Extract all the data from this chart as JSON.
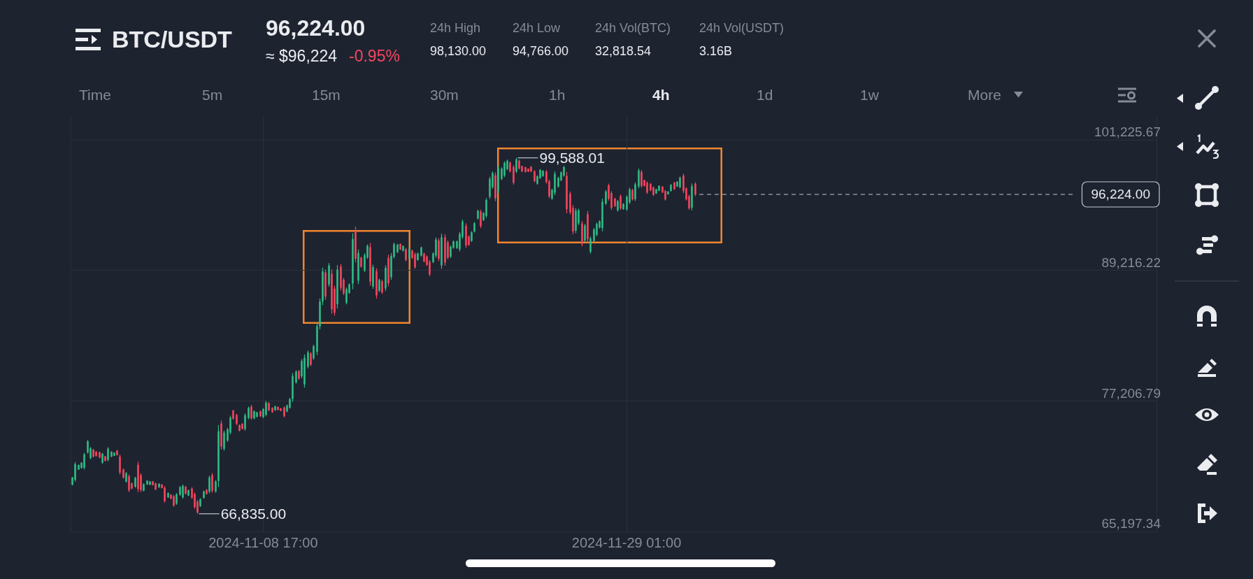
{
  "chart_data": {
    "type": "candlestick",
    "title": "BTC/USDT",
    "subtitle": "96,224.00",
    "annotations": [
      "≈ $96,224",
      "-0.95%",
      "24h High",
      "98,130.00",
      "24h Low",
      "94,766.00",
      "24h Vol(BTC)",
      "32,818.54",
      "24h Vol(USDT)",
      "3.16B",
      "Time",
      "5m",
      "15m",
      "30m",
      "1h",
      "4h",
      "1d",
      "1w",
      "More",
      {
        "text": "99,588.01",
        "x": "2024-11-22T21:00",
        "y": 99588.01
      },
      {
        "text": "66,835.00",
        "x": "2024-11-05T01:00",
        "y": 66835
      }
    ],
    "x": [
      "2024-10-29T01:00",
      "2024-10-29T05:00",
      "2024-10-29T09:00",
      "2024-10-29T13:00",
      "2024-10-29T17:00",
      "2024-10-29T21:00",
      "2024-10-30T01:00",
      "2024-10-30T05:00",
      "2024-10-30T09:00",
      "2024-10-30T13:00",
      "2024-10-30T17:00",
      "2024-10-30T21:00",
      "2024-10-31T01:00",
      "2024-10-31T05:00",
      "2024-10-31T09:00",
      "2024-10-31T13:00",
      "2024-10-31T17:00",
      "2024-10-31T21:00",
      "2024-11-01T01:00",
      "2024-11-01T05:00",
      "2024-11-01T09:00",
      "2024-11-01T13:00",
      "2024-11-01T17:00",
      "2024-11-01T21:00",
      "2024-11-02T01:00",
      "2024-11-02T05:00",
      "2024-11-02T09:00",
      "2024-11-02T13:00",
      "2024-11-02T17:00",
      "2024-11-02T21:00",
      "2024-11-03T01:00",
      "2024-11-03T05:00",
      "2024-11-03T09:00",
      "2024-11-03T13:00",
      "2024-11-03T17:00",
      "2024-11-03T21:00",
      "2024-11-04T01:00",
      "2024-11-04T05:00",
      "2024-11-04T09:00",
      "2024-11-04T13:00",
      "2024-11-04T17:00",
      "2024-11-04T21:00",
      "2024-11-05T01:00",
      "2024-11-05T05:00",
      "2024-11-05T09:00",
      "2024-11-05T13:00",
      "2024-11-05T17:00",
      "2024-11-05T21:00",
      "2024-11-06T01:00",
      "2024-11-06T05:00",
      "2024-11-06T09:00",
      "2024-11-06T13:00",
      "2024-11-06T17:00",
      "2024-11-06T21:00",
      "2024-11-07T01:00",
      "2024-11-07T05:00",
      "2024-11-07T09:00",
      "2024-11-07T13:00",
      "2024-11-07T17:00",
      "2024-11-07T21:00",
      "2024-11-08T01:00",
      "2024-11-08T05:00",
      "2024-11-08T09:00",
      "2024-11-08T13:00",
      "2024-11-08T17:00",
      "2024-11-08T21:00",
      "2024-11-09T01:00",
      "2024-11-09T05:00",
      "2024-11-09T09:00",
      "2024-11-09T13:00",
      "2024-11-09T17:00",
      "2024-11-09T21:00",
      "2024-11-10T01:00",
      "2024-11-10T05:00",
      "2024-11-10T09:00",
      "2024-11-10T13:00",
      "2024-11-10T17:00",
      "2024-11-10T21:00",
      "2024-11-11T01:00",
      "2024-11-11T05:00",
      "2024-11-11T09:00",
      "2024-11-11T13:00",
      "2024-11-11T17:00",
      "2024-11-11T21:00",
      "2024-11-12T01:00",
      "2024-11-12T05:00",
      "2024-11-12T09:00",
      "2024-11-12T13:00",
      "2024-11-12T17:00",
      "2024-11-12T21:00",
      "2024-11-13T01:00",
      "2024-11-13T05:00",
      "2024-11-13T09:00",
      "2024-11-13T13:00",
      "2024-11-13T17:00",
      "2024-11-13T21:00",
      "2024-11-14T01:00",
      "2024-11-14T05:00",
      "2024-11-14T09:00",
      "2024-11-14T13:00",
      "2024-11-14T17:00",
      "2024-11-14T21:00",
      "2024-11-15T01:00",
      "2024-11-15T05:00",
      "2024-11-15T09:00",
      "2024-11-15T13:00",
      "2024-11-15T17:00",
      "2024-11-15T21:00",
      "2024-11-16T01:00",
      "2024-11-16T05:00",
      "2024-11-16T09:00",
      "2024-11-16T13:00",
      "2024-11-16T17:00",
      "2024-11-16T21:00",
      "2024-11-17T01:00",
      "2024-11-17T05:00",
      "2024-11-17T09:00",
      "2024-11-17T13:00",
      "2024-11-17T17:00",
      "2024-11-17T21:00",
      "2024-11-18T01:00",
      "2024-11-18T05:00",
      "2024-11-18T09:00",
      "2024-11-18T13:00",
      "2024-11-18T17:00",
      "2024-11-18T21:00",
      "2024-11-19T01:00",
      "2024-11-19T05:00",
      "2024-11-19T09:00",
      "2024-11-19T13:00",
      "2024-11-19T17:00",
      "2024-11-19T21:00",
      "2024-11-20T01:00",
      "2024-11-20T05:00",
      "2024-11-20T09:00",
      "2024-11-20T13:00",
      "2024-11-20T17:00",
      "2024-11-20T21:00",
      "2024-11-21T01:00",
      "2024-11-21T05:00",
      "2024-11-21T09:00",
      "2024-11-21T13:00",
      "2024-11-21T17:00",
      "2024-11-21T21:00",
      "2024-11-22T01:00",
      "2024-11-22T05:00",
      "2024-11-22T09:00",
      "2024-11-22T13:00",
      "2024-11-22T17:00",
      "2024-11-22T21:00",
      "2024-11-23T01:00",
      "2024-11-23T05:00",
      "2024-11-23T09:00",
      "2024-11-23T13:00",
      "2024-11-23T17:00",
      "2024-11-23T21:00",
      "2024-11-24T01:00",
      "2024-11-24T05:00",
      "2024-11-24T09:00",
      "2024-11-24T13:00",
      "2024-11-24T17:00",
      "2024-11-24T21:00",
      "2024-11-25T01:00",
      "2024-11-25T05:00",
      "2024-11-25T09:00",
      "2024-11-25T13:00",
      "2024-11-25T17:00",
      "2024-11-25T21:00",
      "2024-11-26T01:00",
      "2024-11-26T05:00",
      "2024-11-26T09:00",
      "2024-11-26T13:00",
      "2024-11-26T17:00",
      "2024-11-26T21:00",
      "2024-11-27T01:00",
      "2024-11-27T05:00",
      "2024-11-27T09:00",
      "2024-11-27T13:00",
      "2024-11-27T17:00",
      "2024-11-27T21:00",
      "2024-11-28T01:00",
      "2024-11-28T05:00",
      "2024-11-28T09:00",
      "2024-11-28T13:00",
      "2024-11-28T17:00",
      "2024-11-28T21:00",
      "2024-11-29T01:00",
      "2024-11-29T05:00",
      "2024-11-29T09:00",
      "2024-11-29T13:00",
      "2024-11-29T17:00",
      "2024-11-29T21:00",
      "2024-11-30T01:00",
      "2024-11-30T05:00",
      "2024-11-30T09:00",
      "2024-11-30T13:00",
      "2024-11-30T17:00",
      "2024-11-30T21:00",
      "2024-12-01T01:00",
      "2024-12-01T05:00",
      "2024-12-01T09:00",
      "2024-12-01T13:00",
      "2024-12-01T17:00",
      "2024-12-01T21:00",
      "2024-12-02T01:00",
      "2024-12-02T05:00",
      "2024-12-02T09:00",
      "2024-12-02T13:00",
      "2024-12-02T17:00",
      "2024-12-02T21:00"
    ],
    "ohlc": [
      [
        69520,
        70240,
        69440,
        70160
      ],
      [
        69970,
        71590,
        69790,
        71410
      ],
      [
        70910,
        71370,
        70860,
        71320
      ],
      [
        71050,
        71590,
        70990,
        71530
      ],
      [
        71070,
        72450,
        70920,
        72300
      ],
      [
        72490,
        73630,
        72360,
        73500
      ],
      [
        71960,
        72980,
        71850,
        72870
      ],
      [
        72730,
        72810,
        72020,
        72100
      ],
      [
        72550,
        72600,
        72100,
        72150
      ],
      [
        72490,
        72550,
        71950,
        72010
      ],
      [
        71540,
        72450,
        71440,
        72350
      ],
      [
        72120,
        72170,
        71650,
        71700
      ],
      [
        71800,
        72960,
        71670,
        72830
      ],
      [
        72100,
        72600,
        72040,
        72540
      ],
      [
        72180,
        72490,
        72150,
        72460
      ],
      [
        72650,
        72700,
        72190,
        72240
      ],
      [
        72100,
        72280,
        70450,
        70630
      ],
      [
        70900,
        70990,
        70070,
        70160
      ],
      [
        69800,
        70670,
        69700,
        70570
      ],
      [
        70290,
        70450,
        68840,
        69000
      ],
      [
        69640,
        69700,
        69100,
        69160
      ],
      [
        69330,
        70240,
        69230,
        70140
      ],
      [
        71350,
        71630,
        68840,
        69120
      ],
      [
        70390,
        70560,
        68840,
        69010
      ],
      [
        68970,
        69640,
        68890,
        69560
      ],
      [
        69530,
        69920,
        69490,
        69880
      ],
      [
        69510,
        69850,
        69470,
        69810
      ],
      [
        69810,
        69850,
        69440,
        69480
      ],
      [
        69630,
        69700,
        69010,
        69080
      ],
      [
        69270,
        69640,
        69230,
        69600
      ],
      [
        69530,
        69570,
        69170,
        69210
      ],
      [
        69230,
        69380,
        67860,
        68010
      ],
      [
        68340,
        68800,
        68290,
        68750
      ],
      [
        68580,
        68630,
        68180,
        68230
      ],
      [
        68450,
        68560,
        67490,
        67600
      ],
      [
        67770,
        68740,
        67660,
        68630
      ],
      [
        68590,
        69380,
        68500,
        69290
      ],
      [
        68350,
        69530,
        68220,
        69400
      ],
      [
        69320,
        69400,
        68610,
        68690
      ],
      [
        68520,
        69060,
        68460,
        69000
      ],
      [
        69160,
        69270,
        68200,
        68310
      ],
      [
        68650,
        68800,
        67300,
        67450
      ],
      [
        67960,
        68090,
        66835,
        66960
      ],
      [
        67550,
        68260,
        67470,
        68180
      ],
      [
        68300,
        68970,
        68220,
        68890
      ],
      [
        69050,
        69100,
        68610,
        68660
      ],
      [
        68880,
        70340,
        68720,
        70180
      ],
      [
        70400,
        70580,
        68780,
        68960
      ],
      [
        68890,
        69920,
        68780,
        69810
      ],
      [
        69860,
        75000,
        69290,
        74430
      ],
      [
        75140,
        75410,
        72750,
        73020
      ],
      [
        72820,
        74480,
        72640,
        74300
      ],
      [
        73580,
        74740,
        73450,
        74610
      ],
      [
        74310,
        75860,
        74140,
        75690
      ],
      [
        76320,
        76410,
        75490,
        75580
      ],
      [
        75930,
        76030,
        75000,
        75100
      ],
      [
        75000,
        75060,
        74420,
        74480
      ],
      [
        75110,
        75170,
        74590,
        74650
      ],
      [
        74640,
        76070,
        74480,
        75910
      ],
      [
        75650,
        76710,
        75530,
        76590
      ],
      [
        76700,
        76840,
        75490,
        75630
      ],
      [
        75610,
        76350,
        75530,
        76270
      ],
      [
        75760,
        76220,
        75710,
        76170
      ],
      [
        76270,
        76330,
        75750,
        75810
      ],
      [
        75730,
        76560,
        75640,
        76470
      ],
      [
        75950,
        77210,
        75810,
        77070
      ],
      [
        77020,
        77100,
        76280,
        76360
      ],
      [
        76580,
        76630,
        76130,
        76180
      ],
      [
        76360,
        76780,
        76310,
        76730
      ],
      [
        76670,
        76710,
        76350,
        76390
      ],
      [
        76530,
        76560,
        76280,
        76310
      ],
      [
        76610,
        76710,
        75710,
        75810
      ],
      [
        76250,
        76880,
        76180,
        76810
      ],
      [
        76600,
        77490,
        76500,
        77390
      ],
      [
        77400,
        79780,
        77140,
        79520
      ],
      [
        78930,
        80040,
        78810,
        79920
      ],
      [
        79970,
        80060,
        79180,
        79270
      ],
      [
        79490,
        81070,
        79310,
        80890
      ],
      [
        78750,
        81490,
        78450,
        81190
      ],
      [
        80380,
        81860,
        80210,
        81690
      ],
      [
        81580,
        81710,
        80420,
        80550
      ],
      [
        81140,
        82390,
        81000,
        82250
      ],
      [
        81740,
        84390,
        81450,
        84100
      ],
      [
        84090,
        86640,
        83810,
        86360
      ],
      [
        86390,
        89490,
        86040,
        89140
      ],
      [
        89040,
        89320,
        86540,
        86820
      ],
      [
        87940,
        89900,
        87720,
        89680
      ],
      [
        88910,
        89320,
        85250,
        85660
      ],
      [
        87550,
        87820,
        85080,
        85350
      ],
      [
        86120,
        89710,
        85720,
        89310
      ],
      [
        89580,
        89820,
        87390,
        87630
      ],
      [
        88370,
        88530,
        86960,
        87120
      ],
      [
        86260,
        87650,
        86110,
        87500
      ],
      [
        87170,
        88040,
        87070,
        87940
      ],
      [
        88020,
        92650,
        87500,
        92130
      ],
      [
        92920,
        93250,
        89970,
        90300
      ],
      [
        88290,
        91150,
        87970,
        90830
      ],
      [
        90400,
        90500,
        89470,
        89570
      ],
      [
        89250,
        90820,
        89070,
        90640
      ],
      [
        90420,
        91620,
        90290,
        91490
      ],
      [
        91360,
        91750,
        87820,
        88210
      ],
      [
        87760,
        89750,
        87540,
        89530
      ],
      [
        89150,
        89430,
        86640,
        86920
      ],
      [
        87360,
        88470,
        87240,
        88350
      ],
      [
        88230,
        88360,
        87070,
        87200
      ],
      [
        87570,
        89710,
        87330,
        89470
      ],
      [
        90380,
        90670,
        87760,
        88050
      ],
      [
        88610,
        90820,
        88360,
        90570
      ],
      [
        90480,
        91790,
        90330,
        91640
      ],
      [
        90910,
        91680,
        90820,
        91590
      ],
      [
        91660,
        91720,
        91100,
        91160
      ],
      [
        91030,
        91530,
        90970,
        91470
      ],
      [
        91180,
        91300,
        90070,
        90190
      ],
      [
        90300,
        91360,
        90180,
        91240
      ],
      [
        91060,
        91150,
        90290,
        90380
      ],
      [
        90720,
        90870,
        89370,
        89520
      ],
      [
        90200,
        90870,
        90120,
        90790
      ],
      [
        90590,
        91420,
        90500,
        91330
      ],
      [
        90780,
        90870,
        89970,
        90060
      ],
      [
        90510,
        90610,
        89640,
        89740
      ],
      [
        90030,
        90180,
        88700,
        88850
      ],
      [
        90000,
        90890,
        89900,
        90790
      ],
      [
        90590,
        92260,
        90400,
        92070
      ],
      [
        91980,
        92190,
        90090,
        90300
      ],
      [
        89700,
        92600,
        89380,
        92280
      ],
      [
        92270,
        92560,
        89660,
        89950
      ],
      [
        91810,
        91980,
        90240,
        90410
      ],
      [
        90490,
        91530,
        90370,
        91410
      ],
      [
        91310,
        91980,
        91230,
        91900
      ],
      [
        91290,
        91980,
        91210,
        91900
      ],
      [
        91170,
        92770,
        90990,
        92590
      ],
      [
        92310,
        93910,
        92130,
        93730
      ],
      [
        93330,
        93560,
        91310,
        91540
      ],
      [
        92350,
        92450,
        91480,
        91580
      ],
      [
        91950,
        92830,
        91850,
        92730
      ],
      [
        92810,
        93670,
        92710,
        93570
      ],
      [
        94000,
        94810,
        93910,
        94720
      ],
      [
        94640,
        94810,
        93130,
        93300
      ],
      [
        93860,
        94590,
        93780,
        94510
      ],
      [
        94240,
        95880,
        94060,
        95700
      ],
      [
        96010,
        97850,
        95810,
        97650
      ],
      [
        96900,
        98340,
        96740,
        98180
      ],
      [
        97980,
        98240,
        95600,
        95860
      ],
      [
        96570,
        98880,
        96310,
        98620
      ],
      [
        97650,
        98710,
        97530,
        98590
      ],
      [
        97960,
        99270,
        97810,
        99120
      ],
      [
        98550,
        99420,
        98450,
        99320
      ],
      [
        99150,
        99250,
        98240,
        98340
      ],
      [
        98740,
        98920,
        97120,
        97300
      ],
      [
        98330,
        99588.01,
        98190,
        99450
      ],
      [
        99330,
        99420,
        98520,
        98610
      ],
      [
        98820,
        98880,
        98280,
        98340
      ],
      [
        98720,
        98770,
        98240,
        98290
      ],
      [
        98590,
        98620,
        98280,
        98310
      ],
      [
        98770,
        98820,
        98280,
        98330
      ],
      [
        98340,
        98450,
        97340,
        97450
      ],
      [
        97210,
        97980,
        97120,
        97890
      ],
      [
        97730,
        98560,
        97640,
        98470
      ],
      [
        97910,
        98450,
        97850,
        98390
      ],
      [
        98330,
        98450,
        97230,
        97350
      ],
      [
        97420,
        97590,
        95880,
        96050
      ],
      [
        95830,
        96740,
        95730,
        96640
      ],
      [
        96380,
        98340,
        96160,
        98120
      ],
      [
        96940,
        97850,
        96840,
        97750
      ],
      [
        97530,
        98340,
        97440,
        98250
      ],
      [
        97950,
        98840,
        97850,
        98740
      ],
      [
        97920,
        98300,
        94490,
        94870
      ],
      [
        96270,
        96480,
        94380,
        94590
      ],
      [
        94970,
        95240,
        92560,
        92830
      ],
      [
        92890,
        94960,
        92660,
        94730
      ],
      [
        93560,
        94910,
        93410,
        94760
      ],
      [
        93550,
        93780,
        91440,
        91670
      ],
      [
        91980,
        93520,
        91810,
        93350
      ],
      [
        94410,
        94700,
        91810,
        92100
      ],
      [
        90940,
        92340,
        90780,
        92180
      ],
      [
        91940,
        93130,
        91810,
        93000
      ],
      [
        92510,
        93630,
        92380,
        93500
      ],
      [
        93170,
        93840,
        93090,
        93760
      ],
      [
        93130,
        95840,
        92830,
        95540
      ],
      [
        95380,
        96630,
        95240,
        96490
      ],
      [
        97050,
        97210,
        95660,
        95820
      ],
      [
        96350,
        96520,
        94810,
        94980
      ],
      [
        95830,
        95920,
        95060,
        95150
      ],
      [
        94750,
        95710,
        94640,
        95600
      ],
      [
        96060,
        96200,
        94810,
        94950
      ],
      [
        94870,
        95410,
        94810,
        95350
      ],
      [
        94840,
        96140,
        94700,
        96000
      ],
      [
        95490,
        96840,
        95340,
        96690
      ],
      [
        96630,
        96740,
        95660,
        95770
      ],
      [
        95790,
        97320,
        95620,
        97150
      ],
      [
        96960,
        98600,
        96780,
        98420
      ],
      [
        98290,
        98450,
        96840,
        97000
      ],
      [
        97530,
        97590,
        96950,
        97010
      ],
      [
        97300,
        97420,
        96270,
        96390
      ],
      [
        97190,
        97270,
        96520,
        96600
      ],
      [
        96860,
        96950,
        96090,
        96180
      ],
      [
        96320,
        96740,
        96270,
        96690
      ],
      [
        96570,
        97060,
        96520,
        97010
      ],
      [
        96930,
        96990,
        96350,
        96410
      ],
      [
        96530,
        96630,
        95660,
        95760
      ],
      [
        96230,
        96520,
        96200,
        96490
      ],
      [
        96550,
        97170,
        96480,
        97100
      ],
      [
        97300,
        97380,
        96630,
        96710
      ],
      [
        96960,
        97440,
        96910,
        97390
      ],
      [
        96890,
        97870,
        96780,
        97760
      ],
      [
        97950,
        98130,
        96350,
        96530
      ],
      [
        96770,
        96890,
        95660,
        95780
      ],
      [
        96060,
        96200,
        94810,
        94950
      ],
      [
        95010,
        97230,
        94766,
        96980
      ],
      [
        97200,
        97340,
        96050,
        96224
      ]
    ],
    "xlim": [
      "2024-10-28T22:10",
      "2024-12-28T16:40"
    ],
    "xticks": [
      {
        "value": "2024-11-08T17:00",
        "label": "2024-11-08 17:00"
      },
      {
        "value": "2024-11-29T01:00",
        "label": "2024-11-29 01:00"
      }
    ],
    "ylim": [
      65197.34,
      103430
    ],
    "yticks": [
      {
        "value": 65197.34,
        "label": "65,197.34"
      },
      {
        "value": 77206.79,
        "label": "77,206.79"
      },
      {
        "value": 89216.22,
        "label": "89,216.22"
      },
      {
        "value": 101225.67,
        "label": "101,225.67"
      }
    ],
    "grid": true,
    "ref_lines": [
      {
        "axis": "y",
        "value": 96224,
        "label": "96,224.00",
        "line_style": "dashed",
        "color": "#c3c7ce"
      }
    ]
  }
}
